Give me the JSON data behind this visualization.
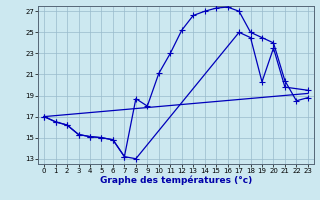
{
  "title": "Graphe des températures (°c)",
  "bg_color": "#cce8f0",
  "line_color": "#0000bb",
  "grid_color": "#99bbcc",
  "xlim": [
    -0.5,
    23.5
  ],
  "ylim": [
    12.5,
    27.5
  ],
  "yticks": [
    13,
    15,
    17,
    19,
    21,
    23,
    25,
    27
  ],
  "xticks": [
    0,
    1,
    2,
    3,
    4,
    5,
    6,
    7,
    8,
    9,
    10,
    11,
    12,
    13,
    14,
    15,
    16,
    17,
    18,
    19,
    20,
    21,
    22,
    23
  ],
  "series1_x": [
    0,
    1,
    2,
    3,
    4,
    5,
    6,
    7,
    8,
    9,
    10,
    11,
    12,
    13,
    14,
    15,
    16,
    17,
    18,
    19,
    20,
    21,
    22,
    23
  ],
  "series1_y": [
    17.0,
    16.5,
    16.2,
    15.3,
    15.1,
    15.0,
    14.8,
    13.2,
    18.7,
    18.0,
    21.1,
    23.0,
    25.2,
    26.6,
    27.0,
    27.3,
    27.4,
    27.0,
    25.0,
    24.5,
    24.0,
    20.4,
    18.5,
    18.8
  ],
  "series2_x": [
    0,
    1,
    2,
    3,
    4,
    5,
    6,
    7,
    8,
    17,
    18,
    19,
    20,
    21,
    23
  ],
  "series2_y": [
    17.0,
    16.5,
    16.2,
    15.3,
    15.1,
    15.0,
    14.8,
    13.2,
    13.0,
    25.0,
    24.5,
    20.3,
    23.5,
    19.8,
    19.5
  ],
  "series3_x": [
    0,
    23
  ],
  "series3_y": [
    17.0,
    19.2
  ],
  "xlabel_fontsize": 6.5,
  "tick_fontsize": 5,
  "linewidth": 0.9,
  "markersize": 2.0
}
